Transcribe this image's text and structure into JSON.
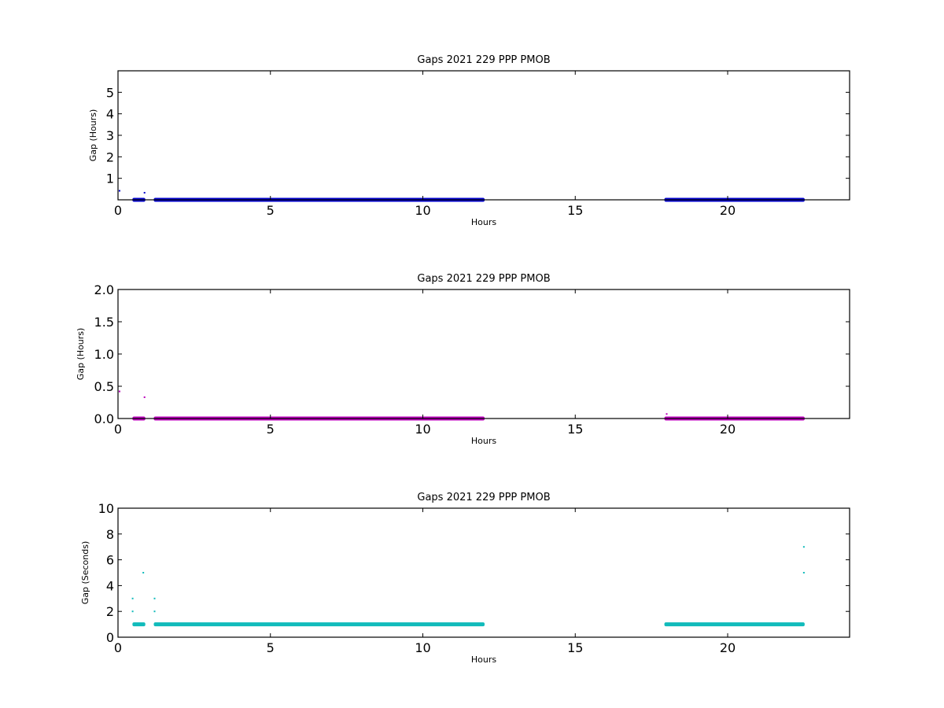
{
  "chart_data": [
    {
      "type": "scatter",
      "title": "Gaps 2021 229 PPP  PMOB",
      "xlabel": "Hours",
      "ylabel": "Gap (Hours)",
      "xlim": [
        0,
        24
      ],
      "ylim": [
        0,
        6
      ],
      "xticks": [
        0,
        5,
        10,
        15,
        20
      ],
      "yticks": [
        1,
        2,
        3,
        4,
        5
      ],
      "ytick_labels": [
        "1",
        "2",
        "3",
        "4",
        "5"
      ],
      "color": "#0000cc",
      "grid": false,
      "series": [
        {
          "points": [
            [
              0.05,
              0.42
            ],
            [
              0.87,
              0.33
            ],
            [
              18.0,
              0.05
            ]
          ],
          "bands": [
            {
              "x_start": 0.5,
              "x_end": 0.87,
              "y": 0.0
            },
            {
              "x_start": 1.2,
              "x_end": 12.0,
              "y": 0.0
            },
            {
              "x_start": 17.95,
              "x_end": 22.5,
              "y": 0.0
            }
          ]
        }
      ]
    },
    {
      "type": "scatter",
      "title": "Gaps 2021 229 PPP  PMOB",
      "xlabel": "Hours",
      "ylabel": "Gap (Hours)",
      "xlim": [
        0,
        24
      ],
      "ylim": [
        0,
        2
      ],
      "xticks": [
        0,
        5,
        10,
        15,
        20
      ],
      "yticks": [
        0,
        0.5,
        1,
        1.5,
        2
      ],
      "ytick_labels": [
        "0.0",
        "0.5",
        "1.0",
        "1.5",
        "2.0"
      ],
      "color": "#bb00bb",
      "grid": false,
      "series": [
        {
          "points": [
            [
              0.05,
              0.42
            ],
            [
              0.87,
              0.33
            ],
            [
              18.0,
              0.07
            ]
          ],
          "bands": [
            {
              "x_start": 0.5,
              "x_end": 0.87,
              "y": 0.0
            },
            {
              "x_start": 1.2,
              "x_end": 12.0,
              "y": 0.0
            },
            {
              "x_start": 17.95,
              "x_end": 22.5,
              "y": 0.0
            }
          ]
        }
      ]
    },
    {
      "type": "scatter",
      "title": "Gaps 2021 229 PPP  PMOB",
      "xlabel": "Hours",
      "ylabel": "Gap (Seconds)",
      "xlim": [
        0,
        24
      ],
      "ylim": [
        0,
        10
      ],
      "xticks": [
        0,
        5,
        10,
        15,
        20
      ],
      "yticks": [
        0,
        2,
        4,
        6,
        8,
        10
      ],
      "ytick_labels": [
        "0",
        "2",
        "4",
        "6",
        "8",
        "10"
      ],
      "color": "#11bbbb",
      "grid": false,
      "series": [
        {
          "points": [
            [
              0.48,
              3.0
            ],
            [
              0.48,
              2.0
            ],
            [
              0.83,
              5.0
            ],
            [
              1.2,
              3.0
            ],
            [
              1.2,
              2.0
            ],
            [
              22.5,
              7.0
            ],
            [
              22.5,
              5.0
            ]
          ],
          "bands": [
            {
              "x_start": 0.5,
              "x_end": 0.87,
              "y": 1.0
            },
            {
              "x_start": 1.2,
              "x_end": 12.0,
              "y": 1.0
            },
            {
              "x_start": 17.95,
              "x_end": 22.5,
              "y": 1.0
            }
          ]
        }
      ]
    }
  ]
}
